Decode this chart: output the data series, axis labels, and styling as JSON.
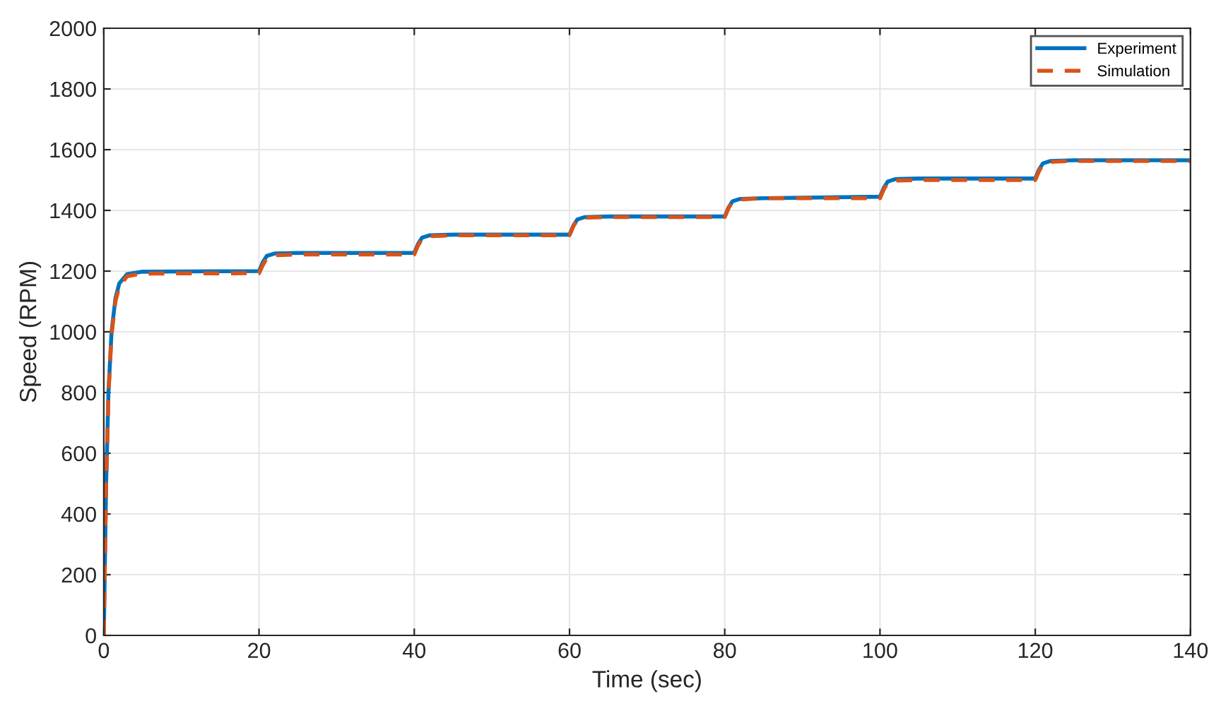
{
  "chart_data": {
    "type": "line",
    "xlabel": "Time (sec)",
    "ylabel": "Speed (RPM)",
    "xlim": [
      0,
      140
    ],
    "xticks": [
      0,
      20,
      40,
      60,
      80,
      100,
      120,
      140
    ],
    "ylim": [
      0,
      2000
    ],
    "yticks": [
      0,
      200,
      400,
      600,
      800,
      1000,
      1200,
      1400,
      1600,
      1800,
      2000
    ],
    "grid": true,
    "legend": "top right",
    "x": [
      0,
      0.3,
      0.6,
      1,
      1.5,
      2,
      3,
      5,
      20,
      20.5,
      21,
      22,
      25,
      40,
      40.5,
      41,
      42,
      45,
      60,
      60.5,
      61,
      62,
      65,
      80,
      80.5,
      81,
      82,
      85,
      100,
      100.5,
      101,
      102,
      105,
      120,
      120.5,
      121,
      122,
      125,
      140
    ],
    "series": [
      {
        "name": "Experiment",
        "color": "#0072bd",
        "line_style": "solid",
        "values": [
          0,
          500,
          800,
          1000,
          1110,
          1160,
          1190,
          1198,
          1200,
          1230,
          1250,
          1258,
          1260,
          1260,
          1290,
          1310,
          1318,
          1320,
          1320,
          1350,
          1370,
          1378,
          1380,
          1380,
          1410,
          1430,
          1438,
          1440,
          1445,
          1475,
          1495,
          1503,
          1505,
          1505,
          1535,
          1555,
          1563,
          1565,
          1565
        ]
      },
      {
        "name": "Simulation",
        "color": "#d95319",
        "line_style": "dashed",
        "values": [
          0,
          490,
          790,
          990,
          1100,
          1150,
          1183,
          1192,
          1193,
          1220,
          1243,
          1252,
          1255,
          1255,
          1285,
          1306,
          1315,
          1318,
          1318,
          1348,
          1368,
          1376,
          1378,
          1378,
          1408,
          1428,
          1436,
          1440,
          1440,
          1470,
          1490,
          1498,
          1500,
          1500,
          1530,
          1552,
          1560,
          1563,
          1563
        ]
      }
    ]
  }
}
